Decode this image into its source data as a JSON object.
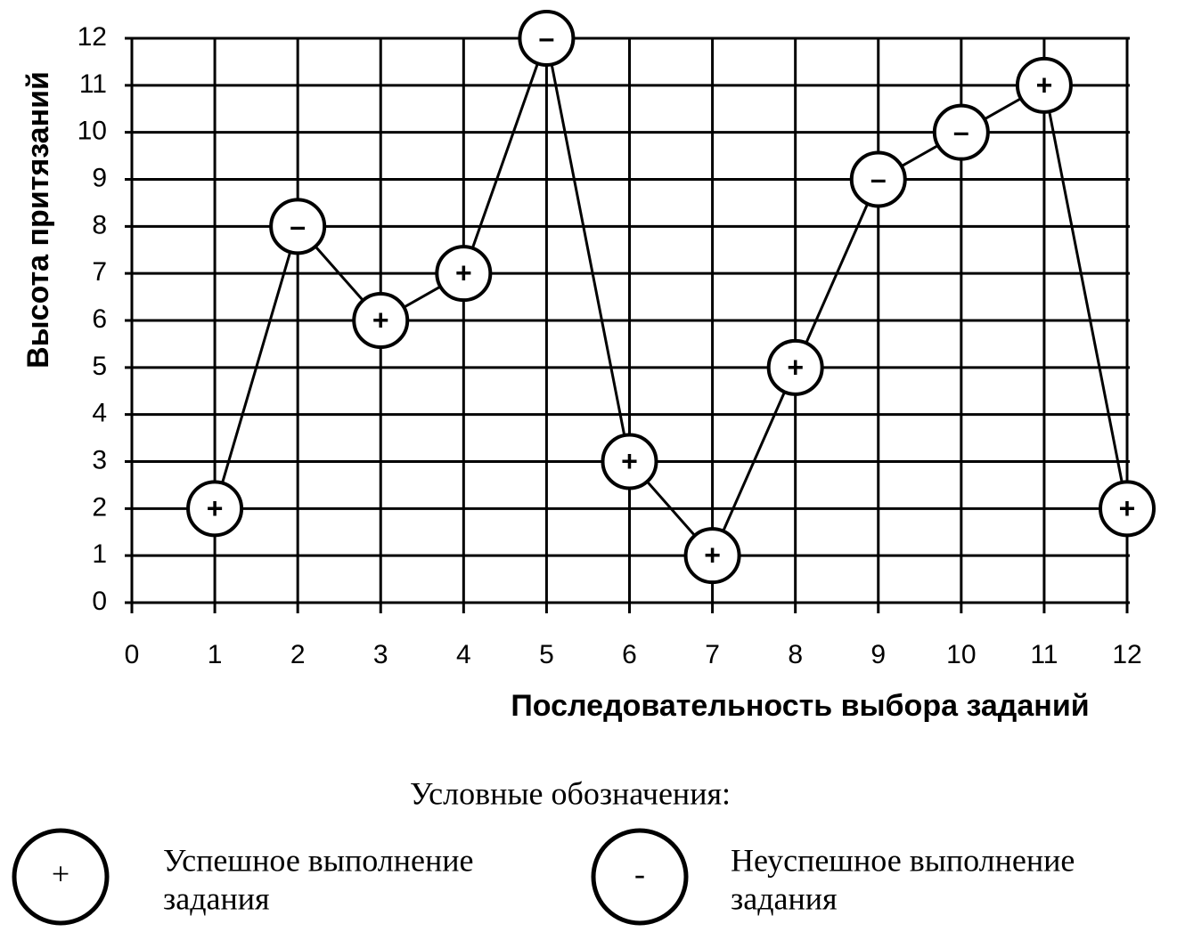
{
  "chart_data": {
    "type": "line",
    "x_label": "Последовательность выбора заданий",
    "y_label": "Высота притязаний",
    "x": [
      1,
      2,
      3,
      4,
      5,
      6,
      7,
      8,
      9,
      10,
      11,
      12
    ],
    "series": [
      {
        "color": "#000000",
        "values": [
          2,
          8,
          6,
          7,
          12,
          3,
          1,
          5,
          9,
          10,
          11,
          2
        ],
        "marker_labels": [
          "+",
          "–",
          "+",
          "+",
          "–",
          "+",
          "+",
          "+",
          "–",
          "–",
          "+",
          "+"
        ]
      }
    ],
    "xlim": [
      0,
      12
    ],
    "xticks": [
      0,
      1,
      2,
      3,
      4,
      5,
      6,
      7,
      8,
      9,
      10,
      11,
      12
    ],
    "ylim": [
      0,
      12
    ],
    "yticks": [
      0,
      1,
      2,
      3,
      4,
      5,
      6,
      7,
      8,
      9,
      10,
      11,
      12
    ],
    "grid": true
  },
  "legend": {
    "title": "Условные обозначения:",
    "items": [
      {
        "symbol": "+",
        "label_lines": [
          "Успешное выполнение",
          "задания"
        ]
      },
      {
        "symbol": "-",
        "label_lines": [
          "Неуспешное выполнение",
          "задания"
        ]
      }
    ]
  }
}
